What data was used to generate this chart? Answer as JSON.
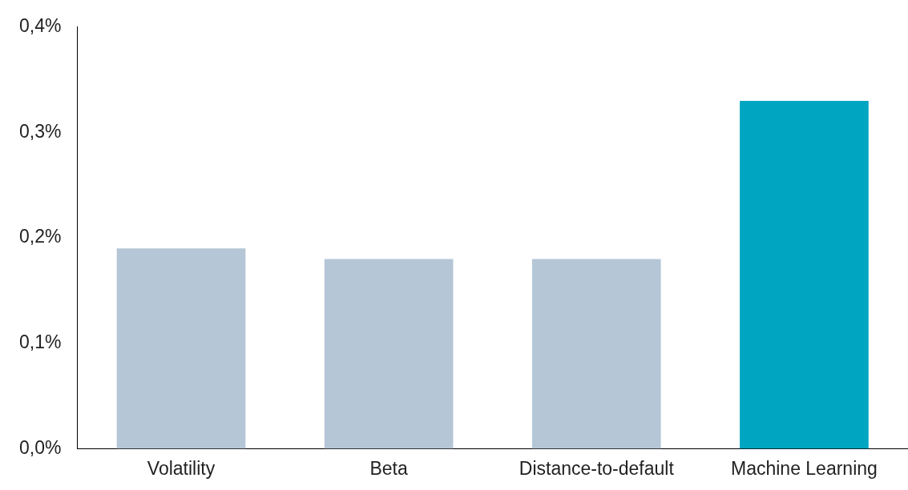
{
  "chart_data": {
    "type": "bar",
    "categories": [
      "Volatility",
      "Beta",
      "Distance-to-default",
      "Machine Learning"
    ],
    "values": [
      0.19,
      0.18,
      0.18,
      0.33
    ],
    "colors": [
      "#b5c6d6",
      "#b5c6d6",
      "#b5c6d6",
      "#00a5c1"
    ],
    "ylim": [
      0,
      0.4
    ],
    "yticks": [
      {
        "value": 0,
        "label": "0,0%"
      },
      {
        "value": 0.1,
        "label": "0,1%"
      },
      {
        "value": 0.2,
        "label": "0,2%"
      },
      {
        "value": 0.3,
        "label": "0,3%"
      },
      {
        "value": 0.4,
        "label": "0,4%"
      }
    ],
    "grid": false,
    "legend": false
  }
}
